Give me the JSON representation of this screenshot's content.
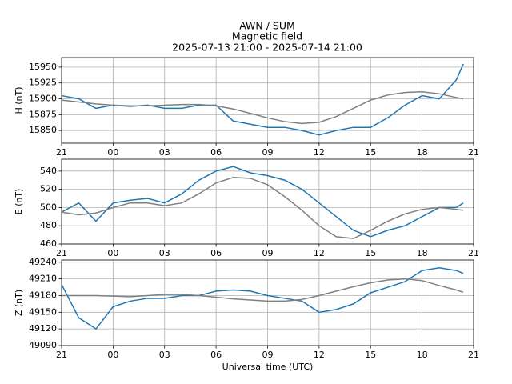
{
  "title": [
    "AWN / SUM",
    "Magnetic field",
    "2025-07-13 21:00 - 2025-07-14 21:00"
  ],
  "chart_data": [
    {
      "type": "line",
      "ylabel": "H (nT)",
      "x": [
        0,
        1,
        2,
        3,
        4,
        5,
        6,
        7,
        8,
        9,
        10,
        11,
        12,
        13,
        14,
        15,
        16,
        17,
        18,
        19,
        20,
        21,
        22,
        23,
        23.4
      ],
      "xlim": [
        0,
        24
      ],
      "xticks": [
        {
          "value": 0,
          "label": "21"
        },
        {
          "value": 3,
          "label": "00"
        },
        {
          "value": 6,
          "label": "03"
        },
        {
          "value": 9,
          "label": "06"
        },
        {
          "value": 12,
          "label": "09"
        },
        {
          "value": 15,
          "label": "12"
        },
        {
          "value": 18,
          "label": "15"
        },
        {
          "value": 21,
          "label": "18"
        },
        {
          "value": 24,
          "label": "21"
        }
      ],
      "ylim": [
        15830,
        15965
      ],
      "yticks": [
        15850,
        15875,
        15900,
        15925,
        15950
      ],
      "grid": true,
      "series": [
        {
          "color": "#1f77b4",
          "values": [
            15905,
            15900,
            15885,
            15890,
            15888,
            15890,
            15885,
            15885,
            15890,
            15890,
            15865,
            15860,
            15855,
            15855,
            15850,
            15843,
            15850,
            15855,
            15855,
            15870,
            15890,
            15905,
            15900,
            15930,
            15955
          ]
        },
        {
          "color": "#808080",
          "values": [
            15898,
            15895,
            15892,
            15890,
            15889,
            15889,
            15890,
            15891,
            15891,
            15889,
            15884,
            15877,
            15870,
            15864,
            15861,
            15863,
            15872,
            15885,
            15898,
            15906,
            15910,
            15911,
            15908,
            15902,
            15900
          ]
        }
      ]
    },
    {
      "type": "line",
      "ylabel": "E (nT)",
      "x": [
        0,
        1,
        2,
        3,
        4,
        5,
        6,
        7,
        8,
        9,
        10,
        11,
        12,
        13,
        14,
        15,
        16,
        17,
        18,
        19,
        20,
        21,
        22,
        23,
        23.4
      ],
      "xlim": [
        0,
        24
      ],
      "xticks": [
        {
          "value": 0,
          "label": "21"
        },
        {
          "value": 3,
          "label": "00"
        },
        {
          "value": 6,
          "label": "03"
        },
        {
          "value": 9,
          "label": "06"
        },
        {
          "value": 12,
          "label": "09"
        },
        {
          "value": 15,
          "label": "12"
        },
        {
          "value": 18,
          "label": "15"
        },
        {
          "value": 21,
          "label": "18"
        },
        {
          "value": 24,
          "label": "21"
        }
      ],
      "ylim": [
        460,
        553
      ],
      "yticks": [
        460,
        480,
        500,
        520,
        540
      ],
      "grid": true,
      "series": [
        {
          "color": "#1f77b4",
          "values": [
            495,
            505,
            485,
            505,
            508,
            510,
            505,
            515,
            530,
            540,
            545,
            538,
            535,
            530,
            520,
            505,
            490,
            475,
            468,
            475,
            480,
            490,
            500,
            500,
            505
          ]
        },
        {
          "color": "#808080",
          "values": [
            495,
            492,
            494,
            500,
            505,
            505,
            502,
            505,
            515,
            527,
            533,
            532,
            525,
            512,
            497,
            480,
            468,
            466,
            475,
            485,
            493,
            498,
            500,
            498,
            497
          ]
        }
      ]
    },
    {
      "type": "line",
      "ylabel": "Z (nT)",
      "xlabel": "Universal time (UTC)",
      "x": [
        0,
        1,
        2,
        3,
        4,
        5,
        6,
        7,
        8,
        9,
        10,
        11,
        12,
        13,
        14,
        15,
        16,
        17,
        18,
        19,
        20,
        21,
        22,
        23,
        23.4
      ],
      "xlim": [
        0,
        24
      ],
      "xticks": [
        {
          "value": 0,
          "label": "21"
        },
        {
          "value": 3,
          "label": "00"
        },
        {
          "value": 6,
          "label": "03"
        },
        {
          "value": 9,
          "label": "06"
        },
        {
          "value": 12,
          "label": "09"
        },
        {
          "value": 15,
          "label": "12"
        },
        {
          "value": 18,
          "label": "15"
        },
        {
          "value": 21,
          "label": "18"
        },
        {
          "value": 24,
          "label": "21"
        }
      ],
      "ylim": [
        49090,
        49244
      ],
      "yticks": [
        49090,
        49120,
        49150,
        49180,
        49210,
        49240
      ],
      "grid": true,
      "series": [
        {
          "color": "#1f77b4",
          "values": [
            49200,
            49140,
            49120,
            49160,
            49170,
            49175,
            49175,
            49180,
            49180,
            49188,
            49190,
            49188,
            49180,
            49175,
            49170,
            49150,
            49155,
            49165,
            49185,
            49195,
            49205,
            49225,
            49230,
            49225,
            49220
          ]
        },
        {
          "color": "#808080",
          "values": [
            49180,
            49180,
            49180,
            49179,
            49178,
            49180,
            49182,
            49182,
            49180,
            49177,
            49174,
            49172,
            49170,
            49170,
            49173,
            49180,
            49188,
            49196,
            49203,
            49208,
            49210,
            49207,
            49198,
            49190,
            49186
          ]
        }
      ]
    }
  ]
}
